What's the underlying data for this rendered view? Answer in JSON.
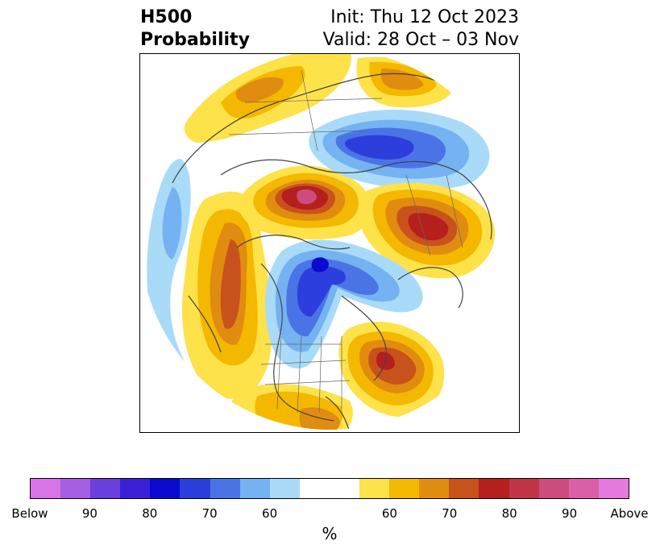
{
  "header": {
    "title_line1": "H500",
    "title_line2": "Probability",
    "init": "Init: Thu 12 Oct 2023",
    "valid": "Valid: 28 Oct – 03 Nov"
  },
  "colorbar": {
    "colors": [
      "#d873e8",
      "#a65ee3",
      "#6b3fdb",
      "#3a20d6",
      "#0a0ad0",
      "#2c3fdc",
      "#4a74e6",
      "#74b2f2",
      "#a9dbf8",
      "#ffffff",
      "#ffffff",
      "#fde24a",
      "#f4b800",
      "#e08c10",
      "#c8521c",
      "#b5201f",
      "#c23448",
      "#cc4d7d",
      "#da5ea8",
      "#e679dd"
    ],
    "ticks": [
      "Below",
      "90",
      "80",
      "70",
      "60",
      "60",
      "70",
      "80",
      "90",
      "Above"
    ],
    "unit": "%"
  },
  "map": {
    "region": "Northern Hemisphere polar stereographic",
    "anomaly_colors": {
      "below_light": "#a9dbf8",
      "below_mid": "#74b2f2",
      "below_strong": "#4a74e6",
      "below_deep": "#2c3fdc",
      "below_max": "#0a0ad0",
      "above_light": "#fde24a",
      "above_mid": "#f4b800",
      "above_orange": "#e08c10",
      "above_rust": "#c8521c",
      "above_red": "#b5201f",
      "above_pink": "#cc4d7d"
    }
  }
}
